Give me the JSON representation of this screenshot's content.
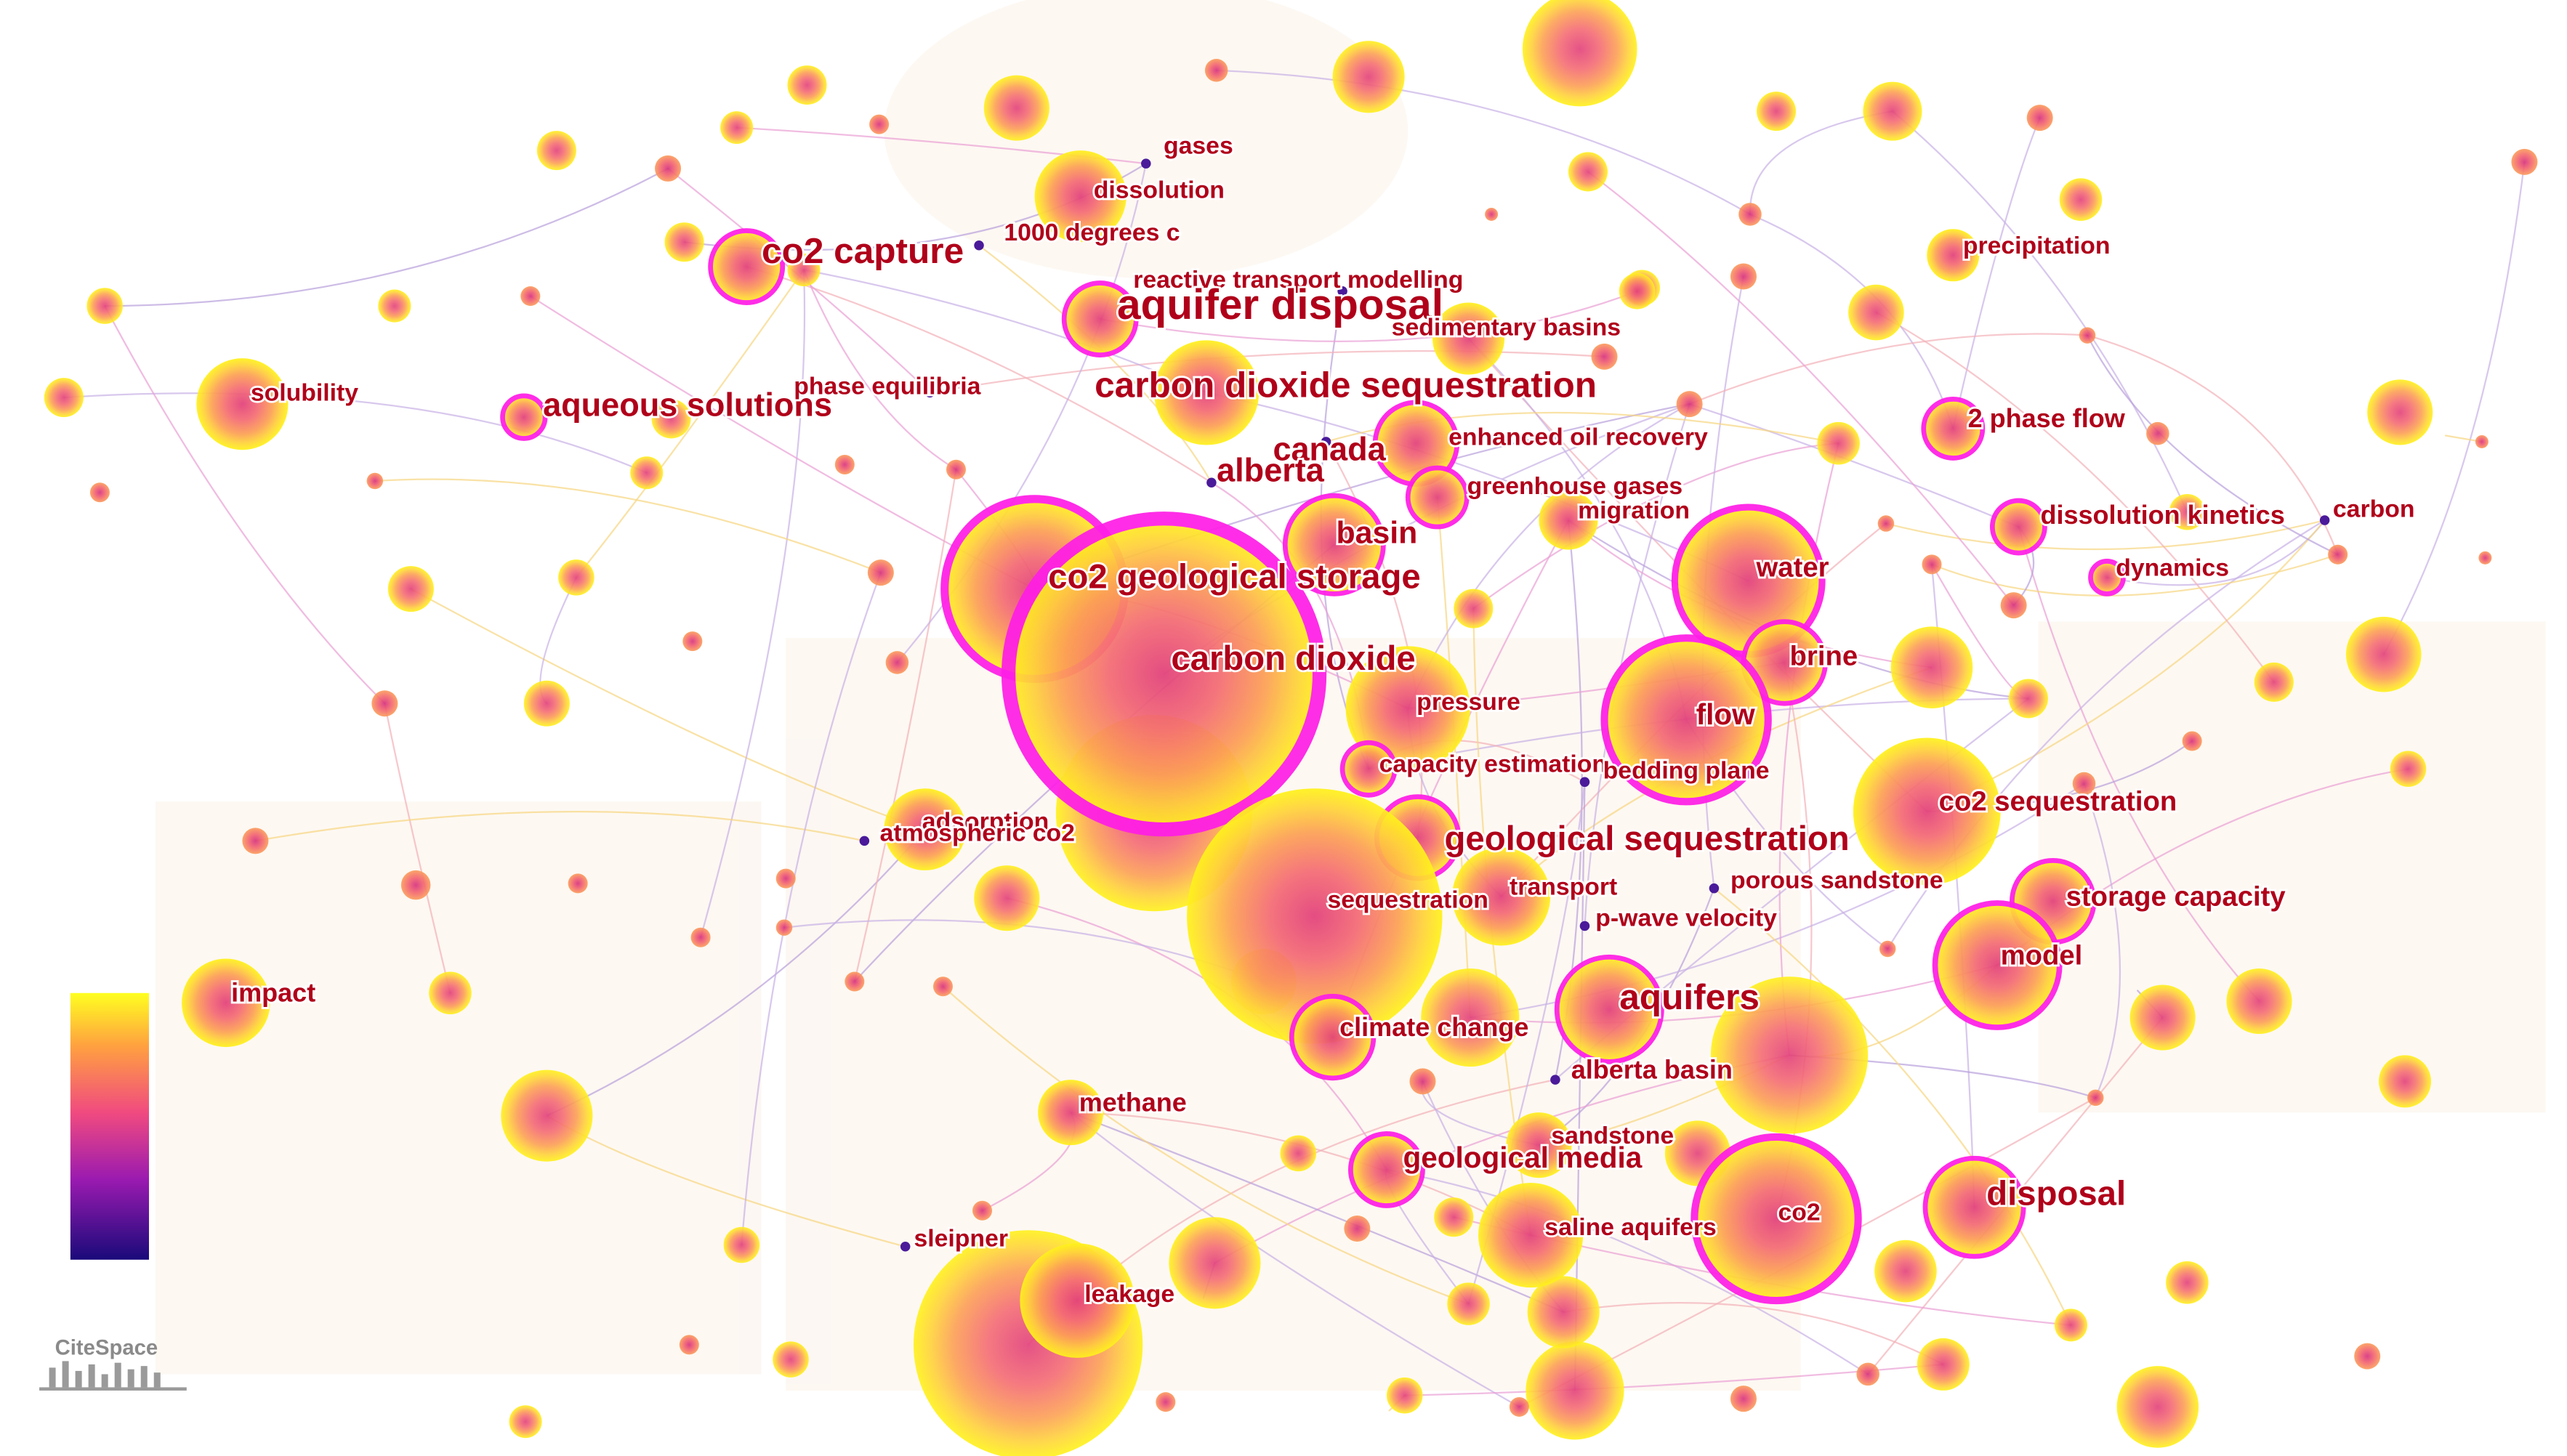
{
  "nodes": [
    {
      "label": "gases"
    },
    {
      "label": "dissolution"
    },
    {
      "label": "1000 degrees c"
    },
    {
      "label": "co2 capture"
    },
    {
      "label": "reactive transport modelling"
    },
    {
      "label": "aquifer disposal"
    },
    {
      "label": "sedimentary basins"
    },
    {
      "label": "solubility"
    },
    {
      "label": "aqueous solutions"
    },
    {
      "label": "phase equilibria"
    },
    {
      "label": "carbon dioxide sequestration"
    },
    {
      "label": "canada"
    },
    {
      "label": "alberta"
    },
    {
      "label": "enhanced oil recovery"
    },
    {
      "label": "greenhouse gases"
    },
    {
      "label": "migration"
    },
    {
      "label": "2 phase flow"
    },
    {
      "label": "precipitation"
    },
    {
      "label": "dissolution kinetics"
    },
    {
      "label": "carbon"
    },
    {
      "label": "dynamics"
    },
    {
      "label": "basin"
    },
    {
      "label": "co2 geological storage"
    },
    {
      "label": "carbon dioxide"
    },
    {
      "label": "water"
    },
    {
      "label": "brine"
    },
    {
      "label": "pressure"
    },
    {
      "label": "flow"
    },
    {
      "label": "capacity estimation"
    },
    {
      "label": "bedding plane"
    },
    {
      "label": "co2 sequestration"
    },
    {
      "label": "adsorption"
    },
    {
      "label": "atmospheric co2"
    },
    {
      "label": "geological sequestration"
    },
    {
      "label": "sequestration"
    },
    {
      "label": "transport"
    },
    {
      "label": "porous sandstone"
    },
    {
      "label": "storage capacity"
    },
    {
      "label": "p-wave velocity"
    },
    {
      "label": "model"
    },
    {
      "label": "aquifers"
    },
    {
      "label": "climate change"
    },
    {
      "label": "alberta basin"
    },
    {
      "label": "methane"
    },
    {
      "label": "impact"
    },
    {
      "label": "sandstone"
    },
    {
      "label": "geological media"
    },
    {
      "label": "disposal"
    },
    {
      "label": "co2"
    },
    {
      "label": "saline aquifers"
    },
    {
      "label": "sleipner"
    },
    {
      "label": "leakage"
    }
  ],
  "logo": "CiteSpace"
}
